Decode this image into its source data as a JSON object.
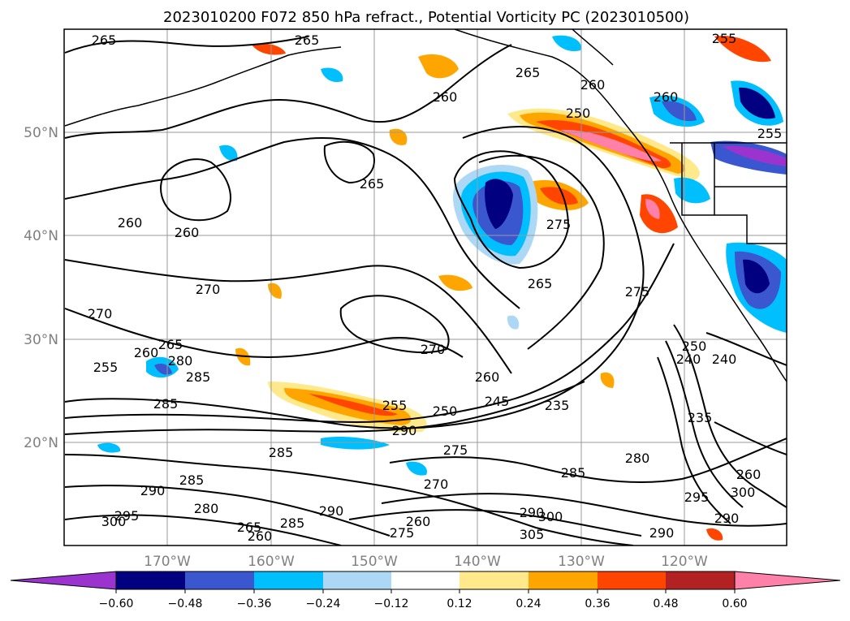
{
  "title": "2023010200 F072 850 hPa refract., Potential Vorticity PC (2023010500)",
  "lat_labels": [
    "50°N",
    "40°N",
    "30°N",
    "20°N"
  ],
  "lon_labels": [
    "170°W",
    "160°W",
    "150°W",
    "140°W",
    "130°W",
    "120°W"
  ],
  "colorbar": {
    "ticks": [
      "−0.60",
      "−0.48",
      "−0.36",
      "−0.24",
      "−0.12",
      "0.12",
      "0.24",
      "0.36",
      "0.48",
      "0.60"
    ],
    "colors": [
      "#9b34cf",
      "#000080",
      "#3a57d0",
      "#00bfff",
      "#add8f5",
      "#ffffff",
      "#ffe98a",
      "#ffa500",
      "#ff4500",
      "#b22222",
      "#ff80a8"
    ]
  },
  "contour_labels": [
    "265",
    "265",
    "255",
    "260",
    "265",
    "260",
    "250",
    "255",
    "265",
    "260",
    "260",
    "260",
    "270",
    "275",
    "275",
    "265",
    "270",
    "270",
    "255",
    "260",
    "265",
    "280",
    "285",
    "285",
    "260",
    "255",
    "250",
    "245",
    "235",
    "240",
    "250",
    "240",
    "235",
    "260",
    "290",
    "285",
    "285",
    "285",
    "275",
    "270",
    "290",
    "295",
    "280",
    "300",
    "280",
    "290",
    "295",
    "300",
    "290",
    "285",
    "265",
    "260",
    "290",
    "290",
    "300",
    "305",
    "275",
    "260"
  ],
  "icons": [
    "colorbar-arrow-left-icon",
    "colorbar-arrow-right-icon"
  ]
}
